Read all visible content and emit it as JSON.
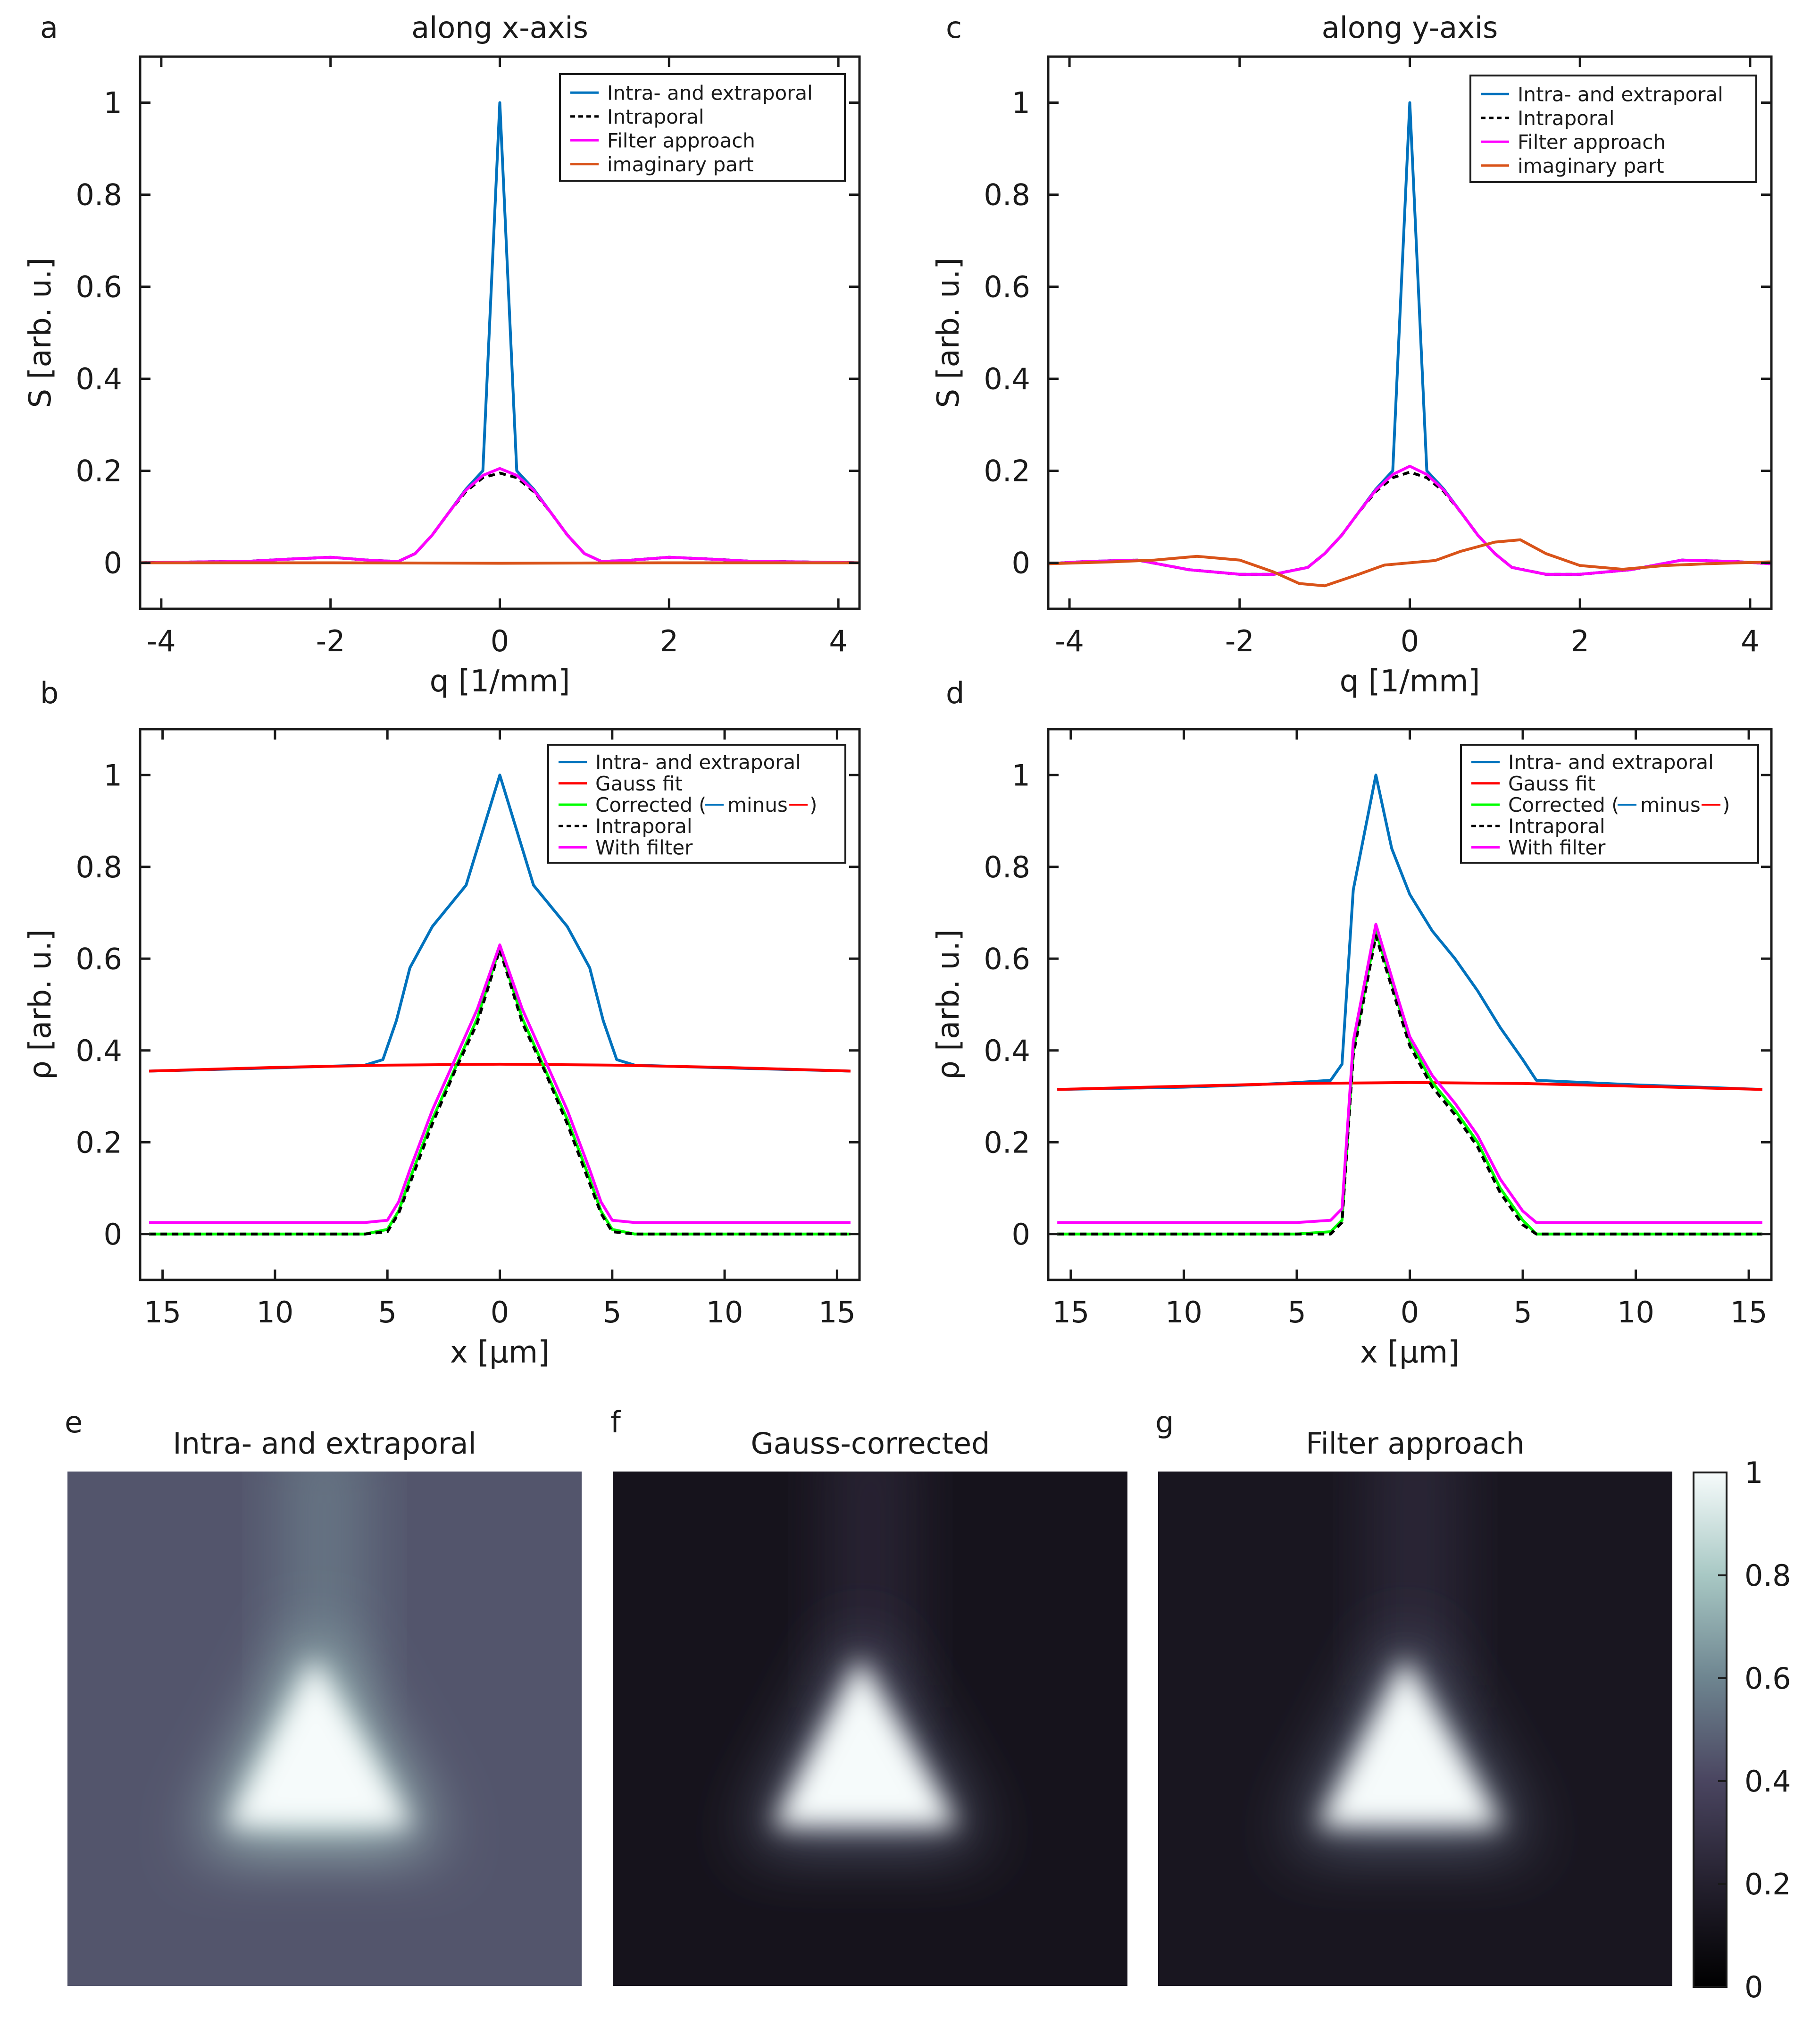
{
  "colors": {
    "total": "#0072BD",
    "intra": "#000000",
    "filter": "#FF00FF",
    "imag": "#D95319",
    "gauss": "#FF0000",
    "corrected": "#00FF00"
  },
  "chart_data": [
    {
      "panel": "a",
      "type": "line",
      "title": "along x-axis",
      "xlabel": "q [1/mm]",
      "ylabel": "S [arb. u.]",
      "xlim": [
        -4.25,
        4.25
      ],
      "ylim": [
        -0.1,
        1.1
      ],
      "xticks": [
        -4,
        -2,
        0,
        2,
        4
      ],
      "xticklabels": [
        "-4",
        "-2",
        "0",
        "2",
        "4"
      ],
      "yticks": [
        0,
        0.2,
        0.4,
        0.6,
        0.8,
        1
      ],
      "yticklabels": [
        "0",
        "0.2",
        "0.4",
        "0.6",
        "0.8",
        "1"
      ],
      "legend_position": "top-right",
      "series": [
        {
          "name": "Intra- and extraporal",
          "color": "#0072BD",
          "style": "solid",
          "x": [
            -4.25,
            -3.5,
            -3,
            -2.5,
            -2,
            -1.5,
            -1.2,
            -1,
            -0.8,
            -0.6,
            -0.4,
            -0.2,
            0,
            0.2,
            0.4,
            0.6,
            0.8,
            1,
            1.2,
            1.5,
            2,
            2.5,
            3,
            3.5,
            4.25
          ],
          "y": [
            0,
            0.002,
            0.003,
            0.008,
            0.012,
            0.005,
            0.003,
            0.02,
            0.06,
            0.11,
            0.16,
            0.2,
            1,
            0.2,
            0.16,
            0.11,
            0.06,
            0.02,
            0.003,
            0.005,
            0.012,
            0.008,
            0.003,
            0.002,
            0
          ]
        },
        {
          "name": "Intraporal",
          "color": "#000000",
          "style": "dashed",
          "x": [
            -4.25,
            -3.5,
            -3,
            -2.5,
            -2,
            -1.5,
            -1.2,
            -1,
            -0.8,
            -0.6,
            -0.4,
            -0.2,
            0,
            0.2,
            0.4,
            0.6,
            0.8,
            1,
            1.2,
            1.5,
            2,
            2.5,
            3,
            3.5,
            4.25
          ],
          "y": [
            0,
            0.002,
            0.003,
            0.008,
            0.012,
            0.005,
            0.003,
            0.02,
            0.06,
            0.11,
            0.155,
            0.185,
            0.195,
            0.185,
            0.155,
            0.11,
            0.06,
            0.02,
            0.003,
            0.005,
            0.012,
            0.008,
            0.003,
            0.002,
            0
          ]
        },
        {
          "name": "Filter approach",
          "color": "#FF00FF",
          "style": "solid",
          "x": [
            -4.25,
            -3.5,
            -3,
            -2.5,
            -2,
            -1.5,
            -1.2,
            -1,
            -0.8,
            -0.6,
            -0.4,
            -0.2,
            0,
            0.2,
            0.4,
            0.6,
            0.8,
            1,
            1.2,
            1.5,
            2,
            2.5,
            3,
            3.5,
            4.25
          ],
          "y": [
            0,
            0.002,
            0.003,
            0.008,
            0.012,
            0.005,
            0.003,
            0.02,
            0.06,
            0.11,
            0.158,
            0.19,
            0.205,
            0.19,
            0.158,
            0.11,
            0.06,
            0.02,
            0.003,
            0.005,
            0.012,
            0.008,
            0.003,
            0.002,
            0
          ]
        },
        {
          "name": "imaginary part",
          "color": "#D95319",
          "style": "solid",
          "x": [
            -4.25,
            -2,
            0,
            2,
            4.25
          ],
          "y": [
            0,
            0,
            -0.001,
            0,
            0
          ]
        }
      ]
    },
    {
      "panel": "c",
      "type": "line",
      "title": "along y-axis",
      "xlabel": "q [1/mm]",
      "ylabel": "S [arb. u.]",
      "xlim": [
        -4.25,
        4.25
      ],
      "ylim": [
        -0.1,
        1.1
      ],
      "xticks": [
        -4,
        -2,
        0,
        2,
        4
      ],
      "xticklabels": [
        "-4",
        "-2",
        "0",
        "2",
        "4"
      ],
      "yticks": [
        0,
        0.2,
        0.4,
        0.6,
        0.8,
        1
      ],
      "yticklabels": [
        "0",
        "0.2",
        "0.4",
        "0.6",
        "0.8",
        "1"
      ],
      "legend_position": "top-right",
      "series": [
        {
          "name": "Intra- and extraporal",
          "color": "#0072BD",
          "style": "solid",
          "x": [
            -4.25,
            -3.8,
            -3.2,
            -2.6,
            -2,
            -1.6,
            -1.2,
            -1,
            -0.8,
            -0.6,
            -0.4,
            -0.2,
            0,
            0.2,
            0.4,
            0.6,
            0.8,
            1,
            1.2,
            1.6,
            2,
            2.6,
            3.2,
            3.8,
            4.25
          ],
          "y": [
            -0.002,
            0.003,
            0.006,
            -0.015,
            -0.025,
            -0.025,
            -0.01,
            0.02,
            0.06,
            0.11,
            0.16,
            0.2,
            1,
            0.2,
            0.16,
            0.11,
            0.06,
            0.02,
            -0.01,
            -0.025,
            -0.025,
            -0.015,
            0.006,
            0.003,
            -0.002
          ]
        },
        {
          "name": "Intraporal",
          "color": "#000000",
          "style": "dashed",
          "x": [
            -4.25,
            -3.8,
            -3.2,
            -2.6,
            -2,
            -1.6,
            -1.2,
            -1,
            -0.8,
            -0.6,
            -0.4,
            -0.2,
            0,
            0.2,
            0.4,
            0.6,
            0.8,
            1,
            1.2,
            1.6,
            2,
            2.6,
            3.2,
            3.8,
            4.25
          ],
          "y": [
            -0.002,
            0.003,
            0.006,
            -0.015,
            -0.025,
            -0.025,
            -0.01,
            0.02,
            0.06,
            0.11,
            0.155,
            0.185,
            0.197,
            0.185,
            0.155,
            0.11,
            0.06,
            0.02,
            -0.01,
            -0.025,
            -0.025,
            -0.015,
            0.006,
            0.003,
            -0.002
          ]
        },
        {
          "name": "Filter approach",
          "color": "#FF00FF",
          "style": "solid",
          "x": [
            -4.25,
            -3.8,
            -3.2,
            -2.6,
            -2,
            -1.6,
            -1.2,
            -1,
            -0.8,
            -0.6,
            -0.4,
            -0.2,
            0,
            0.2,
            0.4,
            0.6,
            0.8,
            1,
            1.2,
            1.6,
            2,
            2.6,
            3.2,
            3.8,
            4.25
          ],
          "y": [
            -0.002,
            0.003,
            0.006,
            -0.015,
            -0.025,
            -0.025,
            -0.01,
            0.02,
            0.06,
            0.11,
            0.158,
            0.192,
            0.21,
            0.192,
            0.158,
            0.11,
            0.06,
            0.02,
            -0.01,
            -0.025,
            -0.025,
            -0.015,
            0.006,
            0.003,
            -0.002
          ]
        },
        {
          "name": "imaginary part",
          "color": "#D95319",
          "style": "solid",
          "x": [
            -4.25,
            -3.5,
            -3,
            -2.5,
            -2,
            -1.6,
            -1.3,
            -1,
            -0.6,
            -0.3,
            0,
            0.3,
            0.6,
            1,
            1.3,
            1.6,
            2,
            2.5,
            3,
            3.5,
            4.25
          ],
          "y": [
            -0.002,
            0.002,
            0.006,
            0.014,
            0.006,
            -0.02,
            -0.045,
            -0.05,
            -0.025,
            -0.005,
            0,
            0.005,
            0.025,
            0.045,
            0.05,
            0.02,
            -0.006,
            -0.014,
            -0.006,
            -0.002,
            0.002
          ]
        }
      ]
    },
    {
      "panel": "b",
      "type": "line",
      "xlabel": "x [μm]",
      "ylabel": "ρ [arb. u.]",
      "xlim": [
        -16,
        16
      ],
      "ylim": [
        -0.1,
        1.1
      ],
      "xticks": [
        -15,
        -10,
        -5,
        0,
        5,
        10,
        15
      ],
      "xticklabels": [
        "15",
        "10",
        "5",
        "0",
        "5",
        "10",
        "15"
      ],
      "yticks": [
        0,
        0.2,
        0.4,
        0.6,
        0.8,
        1
      ],
      "yticklabels": [
        "0",
        "0.2",
        "0.4",
        "0.6",
        "0.8",
        "1"
      ],
      "legend_position": "top-right",
      "series": [
        {
          "name": "Intra- and extraporal",
          "color": "#0072BD",
          "style": "solid",
          "x": [
            -15.6,
            -10,
            -6,
            -5.2,
            -4.6,
            -4,
            -3,
            -1.5,
            0,
            1.5,
            3,
            4,
            4.6,
            5.2,
            6,
            10,
            15.6
          ],
          "y": [
            0.355,
            0.362,
            0.368,
            0.38,
            0.465,
            0.58,
            0.67,
            0.76,
            1,
            0.76,
            0.67,
            0.58,
            0.465,
            0.38,
            0.368,
            0.362,
            0.355
          ]
        },
        {
          "name": "Gauss fit",
          "color": "#FF0000",
          "style": "solid",
          "x": [
            -15.6,
            -10,
            -5,
            0,
            5,
            10,
            15.6
          ],
          "y": [
            0.355,
            0.363,
            0.368,
            0.37,
            0.368,
            0.363,
            0.355
          ]
        },
        {
          "name": "Corrected",
          "color": "#00FF00",
          "style": "solid",
          "x": [
            -15.6,
            -6,
            -5,
            -4.5,
            -4,
            -3,
            -2,
            -1,
            0,
            1,
            2,
            3,
            4,
            4.5,
            5,
            6,
            15.6
          ],
          "y": [
            0,
            0,
            0.01,
            0.05,
            0.12,
            0.25,
            0.36,
            0.47,
            0.625,
            0.47,
            0.36,
            0.25,
            0.12,
            0.05,
            0.01,
            0,
            0
          ]
        },
        {
          "name": "Intraporal",
          "color": "#000000",
          "style": "dashed",
          "x": [
            -15.6,
            -6,
            -5,
            -4.5,
            -4,
            -3,
            -2,
            -1,
            0,
            1,
            2,
            3,
            4,
            4.5,
            5,
            6,
            15.6
          ],
          "y": [
            0,
            0,
            0.005,
            0.045,
            0.11,
            0.24,
            0.355,
            0.46,
            0.62,
            0.46,
            0.355,
            0.24,
            0.11,
            0.045,
            0.005,
            0,
            0
          ]
        },
        {
          "name": "With filter",
          "color": "#FF00FF",
          "style": "solid",
          "x": [
            -15.6,
            -6,
            -5,
            -4.5,
            -4,
            -3,
            -2,
            -1,
            0,
            1,
            2,
            3,
            4,
            4.5,
            5,
            6,
            15.6
          ],
          "y": [
            0.025,
            0.025,
            0.03,
            0.07,
            0.14,
            0.27,
            0.38,
            0.49,
            0.63,
            0.49,
            0.38,
            0.27,
            0.14,
            0.07,
            0.03,
            0.025,
            0.025
          ]
        }
      ]
    },
    {
      "panel": "d",
      "type": "line",
      "xlabel": "x [μm]",
      "ylabel": "ρ [arb. u.]",
      "xlim": [
        -16,
        16
      ],
      "ylim": [
        -0.1,
        1.1
      ],
      "xticks": [
        -15,
        -10,
        -5,
        0,
        5,
        10,
        15
      ],
      "xticklabels": [
        "15",
        "10",
        "5",
        "0",
        "5",
        "10",
        "15"
      ],
      "yticks": [
        0,
        0.2,
        0.4,
        0.6,
        0.8,
        1
      ],
      "yticklabels": [
        "0",
        "0.2",
        "0.4",
        "0.6",
        "0.8",
        "1"
      ],
      "legend_position": "top-right",
      "series": [
        {
          "name": "Intra- and extraporal",
          "color": "#0072BD",
          "style": "solid",
          "x": [
            -15.6,
            -10,
            -7,
            -5,
            -3.5,
            -3,
            -2.5,
            -1.5,
            -0.8,
            0,
            1,
            2,
            3,
            4,
            5,
            5.6,
            10,
            15.6
          ],
          "y": [
            0.315,
            0.32,
            0.325,
            0.33,
            0.335,
            0.37,
            0.75,
            1,
            0.84,
            0.74,
            0.66,
            0.6,
            0.53,
            0.45,
            0.38,
            0.335,
            0.325,
            0.315
          ]
        },
        {
          "name": "Gauss fit",
          "color": "#FF0000",
          "style": "solid",
          "x": [
            -15.6,
            -10,
            -5,
            0,
            5,
            10,
            15.6
          ],
          "y": [
            0.315,
            0.322,
            0.328,
            0.33,
            0.328,
            0.322,
            0.315
          ]
        },
        {
          "name": "Corrected",
          "color": "#00FF00",
          "style": "solid",
          "x": [
            -15.6,
            -10,
            -5,
            -3.5,
            -3,
            -2.5,
            -1.5,
            -0.5,
            0,
            1,
            2,
            3,
            4,
            5,
            5.6,
            10,
            15.6
          ],
          "y": [
            0,
            0,
            0,
            0.005,
            0.03,
            0.4,
            0.66,
            0.5,
            0.42,
            0.33,
            0.27,
            0.2,
            0.1,
            0.03,
            0,
            0,
            0
          ]
        },
        {
          "name": "Intraporal",
          "color": "#000000",
          "style": "dashed",
          "x": [
            -15.6,
            -10,
            -5,
            -3.5,
            -3,
            -2.5,
            -1.5,
            -0.5,
            0,
            1,
            2,
            3,
            4,
            5,
            5.6,
            10,
            15.6
          ],
          "y": [
            0,
            0,
            0,
            0,
            0.025,
            0.39,
            0.65,
            0.49,
            0.41,
            0.32,
            0.26,
            0.19,
            0.09,
            0.02,
            0,
            0,
            0
          ]
        },
        {
          "name": "With filter",
          "color": "#FF00FF",
          "style": "solid",
          "x": [
            -15.6,
            -10,
            -5,
            -3.5,
            -3,
            -2.5,
            -1.5,
            -0.5,
            0,
            1,
            2,
            3,
            4,
            5,
            5.6,
            10,
            15.6
          ],
          "y": [
            0.025,
            0.025,
            0.025,
            0.03,
            0.055,
            0.42,
            0.675,
            0.51,
            0.43,
            0.345,
            0.285,
            0.215,
            0.12,
            0.05,
            0.025,
            0.025,
            0.025
          ]
        }
      ]
    },
    {
      "type": "heatmap",
      "images": [
        {
          "panel": "e",
          "title": "Intra- and extraporal",
          "background_level": 0.45,
          "peak_level": 1.0
        },
        {
          "panel": "f",
          "title": "Gauss-corrected",
          "background_level": 0.12,
          "peak_level": 1.0
        },
        {
          "panel": "g",
          "title": "Filter  approach",
          "background_level": 0.14,
          "peak_level": 1.0
        }
      ],
      "colorbar": {
        "ticks": [
          0,
          0.2,
          0.4,
          0.6,
          0.8,
          1
        ],
        "ticklabels": [
          "0",
          "0.2",
          "0.4",
          "0.6",
          "0.8",
          "1"
        ]
      }
    }
  ],
  "legend_b_corrected": {
    "prefix": "Corrected (",
    "minus_word": "minus",
    "suffix": ")"
  }
}
